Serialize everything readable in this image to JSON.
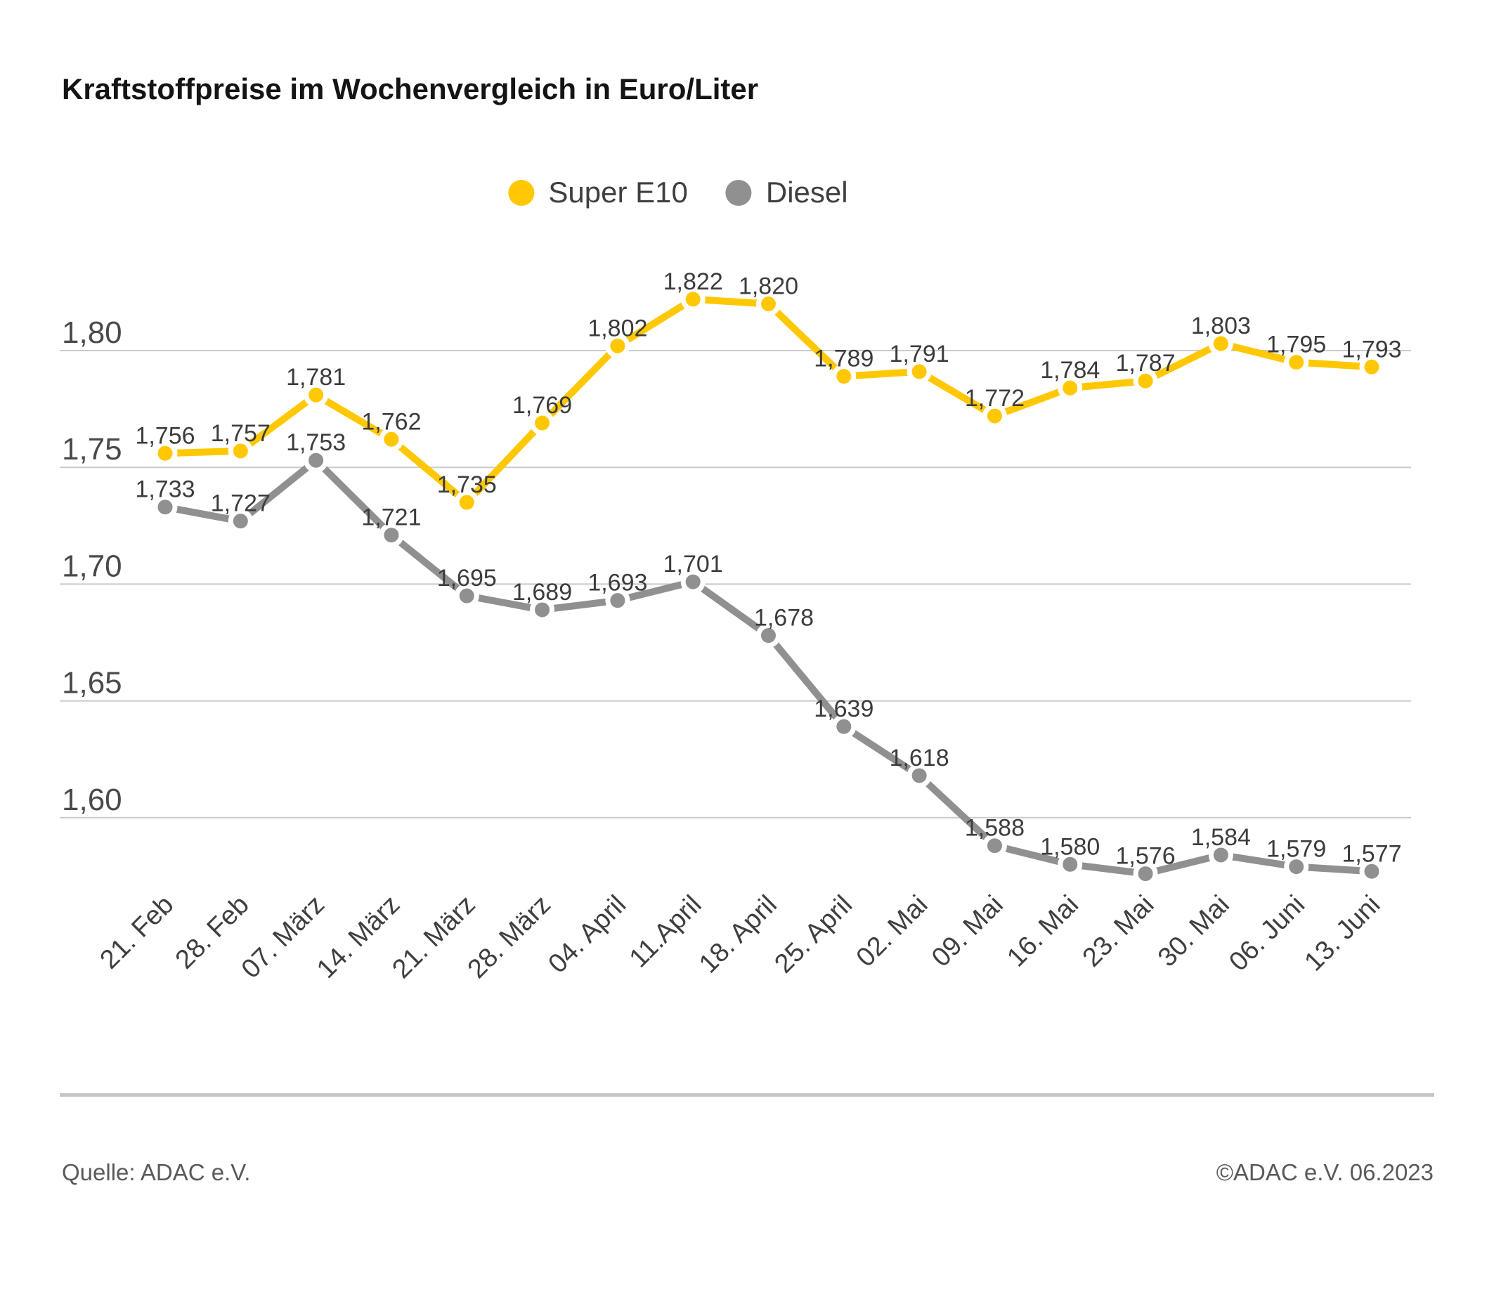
{
  "title": "Kraftstoffpreise im Wochenvergleich in Euro/Liter",
  "legend": {
    "items": [
      {
        "label": "Super E10",
        "color": "#FFC803"
      },
      {
        "label": "Diesel",
        "color": "#909090"
      }
    ]
  },
  "footer": {
    "source": "Quelle: ADAC e.V.",
    "copyright": "©ADAC e.V. 06.2023"
  },
  "chart_data": {
    "type": "line",
    "title": "Kraftstoffpreise im Wochenvergleich in Euro/Liter",
    "unit": "Euro/Liter",
    "categories": [
      "21. Feb",
      "28. Feb",
      "07. März",
      "14. März",
      "21. März",
      "28. März",
      "04. April",
      "11.April",
      "18. April",
      "25. April",
      "02. Mai",
      "09. Mai",
      "16. Mai",
      "23. Mai",
      "30. Mai",
      "06. Juni",
      "13. Juni"
    ],
    "series": [
      {
        "name": "Super E10",
        "color": "#FFC803",
        "values": [
          1.756,
          1.757,
          1.781,
          1.762,
          1.735,
          1.769,
          1.802,
          1.822,
          1.82,
          1.789,
          1.791,
          1.772,
          1.784,
          1.787,
          1.803,
          1.795,
          1.793
        ]
      },
      {
        "name": "Diesel",
        "color": "#909090",
        "values": [
          1.733,
          1.727,
          1.753,
          1.721,
          1.695,
          1.689,
          1.693,
          1.701,
          1.678,
          1.639,
          1.618,
          1.588,
          1.58,
          1.576,
          1.584,
          1.579,
          1.577
        ]
      }
    ],
    "yticks": [
      1.8,
      1.75,
      1.7,
      1.65,
      1.6
    ],
    "ylim": [
      1.55,
      1.85
    ],
    "grid": true,
    "legend_position": "top-center",
    "decimal_separator": ",",
    "value_decimals": 3,
    "ytick_decimals": 2,
    "grid_color": "#cacaca",
    "label_color": "#3c3c3c"
  }
}
